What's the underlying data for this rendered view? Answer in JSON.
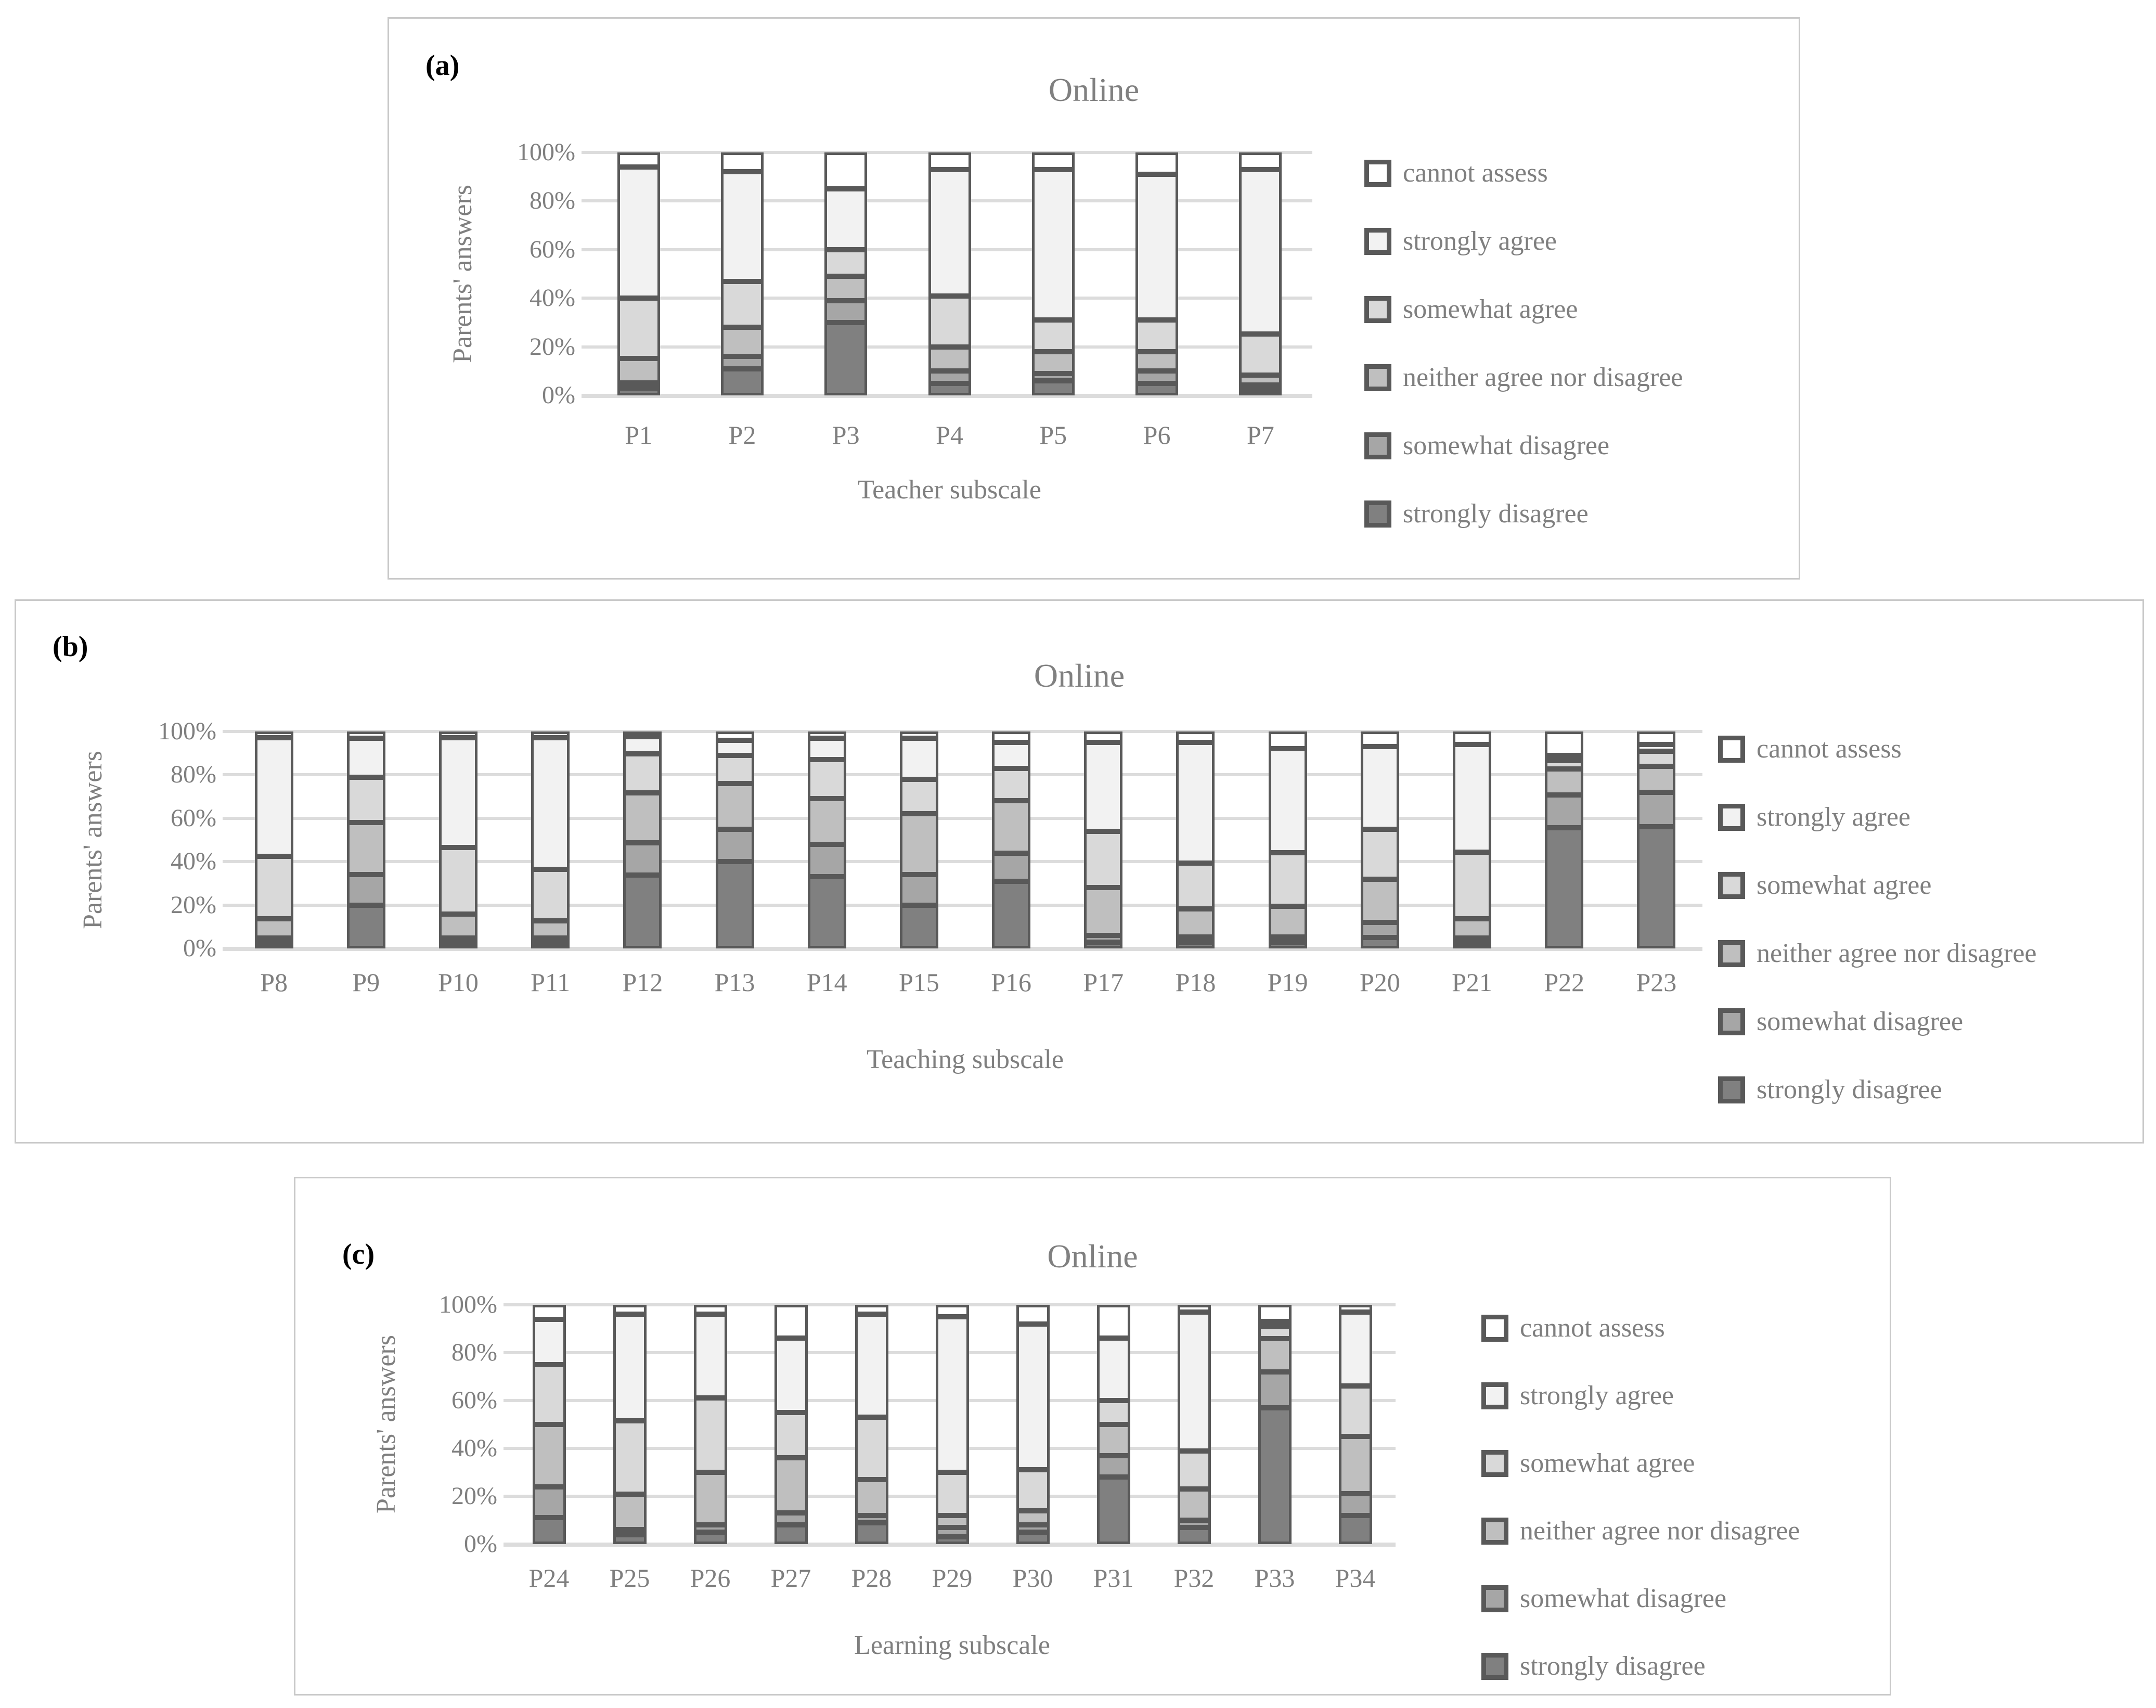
{
  "colors": {
    "cannot_assess": "#ffffff",
    "strongly_agree": "#f2f2f2",
    "somewhat_agree": "#d9d9d9",
    "neither": "#bfbfbf",
    "somewhat_disagree": "#a6a6a6",
    "strongly_disagree": "#808080",
    "segment_border": "#595959",
    "gridline": "#dcdcdc",
    "text_gray": "#7f7f7f",
    "title_gray": "#808080",
    "panel_border": "#c9c9c9"
  },
  "legend": [
    {
      "label": "cannot assess",
      "color": "cannot_assess"
    },
    {
      "label": "strongly agree",
      "color": "strongly_agree"
    },
    {
      "label": "somewhat agree",
      "color": "somewhat_agree"
    },
    {
      "label": "neither agree nor disagree",
      "color": "neither"
    },
    {
      "label": "somewhat disagree",
      "color": "somewhat_disagree"
    },
    {
      "label": "strongly disagree",
      "color": "strongly_disagree"
    }
  ],
  "panels": [
    {
      "label": "(a)",
      "title": "Online",
      "y_axis_title": "Parents' answers",
      "x_axis_title": "Teacher subscale"
    },
    {
      "label": "(b)",
      "title": "Online",
      "y_axis_title": "Parents' answers",
      "x_axis_title": "Teaching subscale"
    },
    {
      "label": "(c)",
      "title": "Online",
      "y_axis_title": "Parents' answers",
      "x_axis_title": "Learning subscale"
    }
  ],
  "chart_data": [
    {
      "type": "bar",
      "subtype": "stacked-100",
      "title": "Online",
      "xlabel": "Teacher subscale",
      "ylabel": "Parents' answers",
      "ylim": [
        0,
        100
      ],
      "yticks": [
        0,
        20,
        40,
        60,
        80,
        100
      ],
      "ytick_labels": [
        "0%",
        "20%",
        "40%",
        "60%",
        "80%",
        "100%"
      ],
      "grid": true,
      "legend_position": "right",
      "categories": [
        "P1",
        "P2",
        "P3",
        "P4",
        "P5",
        "P6",
        "P7"
      ],
      "series": [
        {
          "name": "strongly disagree",
          "color": "strongly_disagree",
          "values": [
            3,
            11,
            30,
            5,
            6,
            5,
            2
          ]
        },
        {
          "name": "somewhat disagree",
          "color": "somewhat_disagree",
          "values": [
            2,
            5,
            9,
            5,
            3,
            5,
            2
          ]
        },
        {
          "name": "neither agree nor disagree",
          "color": "neither",
          "values": [
            10,
            12,
            10,
            10,
            9,
            8,
            4
          ]
        },
        {
          "name": "somewhat agree",
          "color": "somewhat_agree",
          "values": [
            25,
            19,
            11,
            21,
            13,
            13,
            17
          ]
        },
        {
          "name": "strongly agree",
          "color": "strongly_agree",
          "values": [
            54,
            45,
            25,
            52,
            62,
            60,
            68
          ]
        },
        {
          "name": "cannot assess",
          "color": "cannot_assess",
          "values": [
            6,
            8,
            15,
            7,
            7,
            9,
            7
          ]
        }
      ]
    },
    {
      "type": "bar",
      "subtype": "stacked-100",
      "title": "Online",
      "xlabel": "Teaching subscale",
      "ylabel": "Parents' answers",
      "ylim": [
        0,
        100
      ],
      "yticks": [
        0,
        20,
        40,
        60,
        80,
        100
      ],
      "ytick_labels": [
        "0%",
        "20%",
        "40%",
        "60%",
        "80%",
        "100%"
      ],
      "grid": true,
      "legend_position": "right",
      "categories": [
        "P8",
        "P9",
        "P10",
        "P11",
        "P12",
        "P13",
        "P14",
        "P15",
        "P16",
        "P17",
        "P18",
        "P19",
        "P20",
        "P21",
        "P22",
        "P23"
      ],
      "series": [
        {
          "name": "strongly disagree",
          "color": "strongly_disagree",
          "values": [
            2,
            20,
            2,
            2,
            34,
            40,
            33,
            20,
            31,
            3,
            3,
            3,
            5,
            2,
            56,
            56
          ]
        },
        {
          "name": "somewhat disagree",
          "color": "somewhat_disagree",
          "values": [
            2,
            14,
            2,
            2,
            15,
            15,
            15,
            14,
            13,
            3,
            2,
            2,
            7,
            2,
            15,
            16
          ]
        },
        {
          "name": "neither agree nor disagree",
          "color": "neither",
          "values": [
            9,
            24,
            11,
            8,
            23,
            21,
            21,
            28,
            24,
            22,
            13,
            14,
            20,
            9,
            12,
            12
          ]
        },
        {
          "name": "somewhat agree",
          "color": "somewhat_agree",
          "values": [
            29,
            21,
            31,
            24,
            18,
            13,
            18,
            16,
            15,
            26,
            21,
            25,
            23,
            31,
            4,
            7
          ]
        },
        {
          "name": "strongly agree",
          "color": "strongly_agree",
          "values": [
            55,
            18,
            51,
            61,
            8,
            7,
            10,
            19,
            12,
            41,
            56,
            48,
            38,
            50,
            2,
            3
          ]
        },
        {
          "name": "cannot assess",
          "color": "cannot_assess",
          "values": [
            3,
            3,
            3,
            3,
            2,
            4,
            3,
            3,
            5,
            5,
            5,
            8,
            7,
            6,
            11,
            6
          ]
        }
      ]
    },
    {
      "type": "bar",
      "subtype": "stacked-100",
      "title": "Online",
      "xlabel": "Learning subscale",
      "ylabel": "Parents' answers",
      "ylim": [
        0,
        100
      ],
      "yticks": [
        0,
        20,
        40,
        60,
        80,
        100
      ],
      "ytick_labels": [
        "0%",
        "20%",
        "40%",
        "60%",
        "80%",
        "100%"
      ],
      "grid": true,
      "legend_position": "right",
      "categories": [
        "P24",
        "P25",
        "P26",
        "P27",
        "P28",
        "P29",
        "P30",
        "P31",
        "P32",
        "P33",
        "P34"
      ],
      "series": [
        {
          "name": "strongly disagree",
          "color": "strongly_disagree",
          "values": [
            11,
            4,
            5,
            8,
            9,
            3,
            5,
            28,
            7,
            57,
            12
          ]
        },
        {
          "name": "somewhat disagree",
          "color": "somewhat_disagree",
          "values": [
            13,
            1,
            3,
            5,
            3,
            4,
            3,
            9,
            3,
            15,
            9
          ]
        },
        {
          "name": "neither agree nor disagree",
          "color": "neither",
          "values": [
            26,
            15,
            22,
            23,
            15,
            5,
            6,
            13,
            13,
            14,
            24
          ]
        },
        {
          "name": "somewhat agree",
          "color": "somewhat_agree",
          "values": [
            25,
            31,
            31,
            19,
            26,
            18,
            17,
            10,
            16,
            5,
            21
          ]
        },
        {
          "name": "strongly agree",
          "color": "strongly_agree",
          "values": [
            19,
            45,
            35,
            31,
            43,
            65,
            61,
            26,
            58,
            2,
            31
          ]
        },
        {
          "name": "cannot assess",
          "color": "cannot_assess",
          "values": [
            6,
            4,
            4,
            14,
            4,
            5,
            8,
            14,
            3,
            7,
            3
          ]
        }
      ]
    }
  ]
}
